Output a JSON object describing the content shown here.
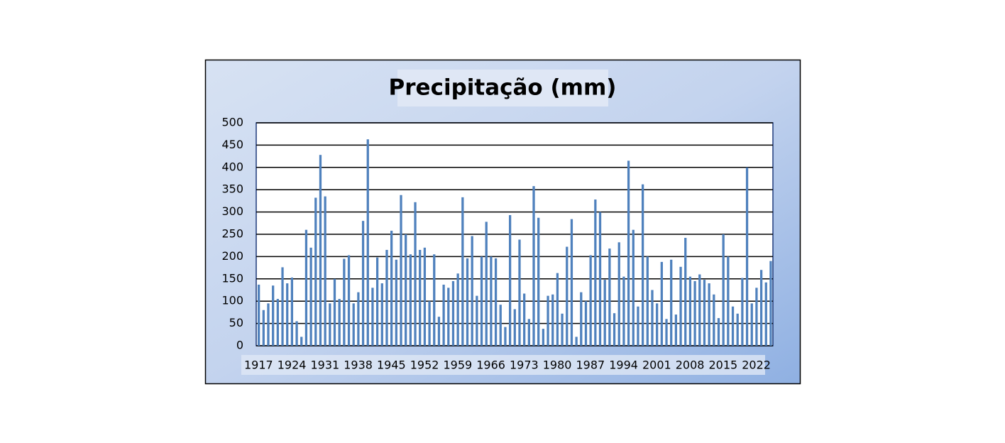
{
  "chart_data": {
    "type": "bar",
    "title": "Precipitação (mm)",
    "categories": [
      "1917",
      null,
      null,
      null,
      null,
      null,
      null,
      "1924",
      null,
      null,
      null,
      null,
      null,
      null,
      "1931",
      null,
      null,
      null,
      null,
      null,
      null,
      "1938",
      null,
      null,
      null,
      null,
      null,
      null,
      "1945",
      null,
      null,
      null,
      null,
      null,
      null,
      "1952",
      null,
      null,
      null,
      null,
      null,
      null,
      "1959",
      null,
      null,
      null,
      null,
      null,
      null,
      "1966",
      null,
      null,
      null,
      null,
      null,
      null,
      "1973",
      null,
      null,
      null,
      null,
      null,
      null,
      "1980",
      null,
      null,
      null,
      null,
      null,
      null,
      "1987",
      null,
      null,
      null,
      null,
      null,
      null,
      "1994",
      null,
      null,
      null,
      null,
      null,
      null,
      "2001",
      null,
      null,
      null,
      null,
      null,
      null,
      "2008",
      null,
      null,
      null,
      null,
      null,
      null,
      "2015",
      null,
      null,
      null,
      null,
      null,
      null,
      "2022",
      null,
      null,
      null
    ],
    "values": [
      137,
      80,
      95,
      135,
      105,
      176,
      140,
      153,
      55,
      20,
      260,
      220,
      332,
      428,
      335,
      95,
      150,
      105,
      195,
      203,
      95,
      120,
      280,
      463,
      130,
      198,
      140,
      215,
      258,
      193,
      338,
      250,
      205,
      322,
      215,
      220,
      100,
      205,
      65,
      137,
      130,
      145,
      162,
      333,
      196,
      246,
      112,
      200,
      278,
      200,
      196,
      92,
      42,
      293,
      82,
      238,
      117,
      60,
      358,
      287,
      38,
      112,
      115,
      163,
      72,
      222,
      284,
      20,
      120,
      100,
      203,
      328,
      300,
      148,
      218,
      73,
      232,
      155,
      415,
      260,
      88,
      362,
      200,
      125,
      95,
      188,
      60,
      193,
      70,
      177,
      242,
      155,
      145,
      160,
      148,
      140,
      115,
      62,
      250,
      200,
      88,
      72,
      152,
      400,
      95,
      130,
      170,
      142,
      190
    ],
    "color": "#4f81bd",
    "ylim": [
      0,
      500
    ],
    "yticks": [
      0,
      50,
      100,
      150,
      200,
      250,
      300,
      350,
      400,
      450,
      500
    ],
    "grid": true
  }
}
